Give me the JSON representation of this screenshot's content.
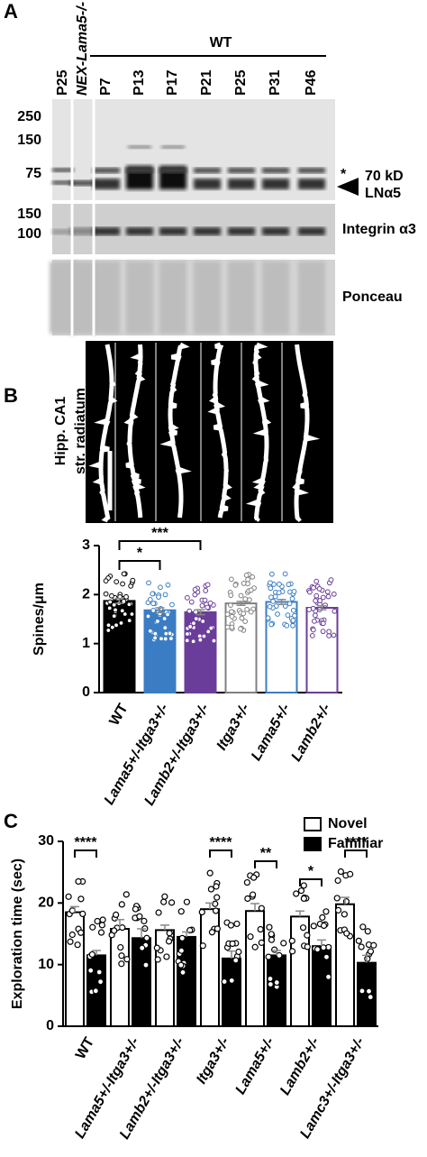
{
  "blot": {
    "panel": "A",
    "lanes": [
      "P25",
      "NEX-Lama5-/-",
      "P7",
      "P13",
      "P17",
      "P21",
      "P25",
      "P31",
      "P46"
    ],
    "group_label": "WT",
    "markers_top": [
      250,
      150,
      75
    ],
    "markers_integrin": [
      150,
      100
    ],
    "asterisk": "*",
    "size_label": "70 kD",
    "band_label": "LNα5",
    "integrin_label": "Integrin α3",
    "ponceau_label": "Ponceau"
  },
  "image_panel": {
    "label_lines": [
      "Hipp. CA1",
      "str. radiatum"
    ]
  },
  "chart_data": [
    {
      "type": "bar",
      "panel": "B",
      "ylabel": "Spines/μm",
      "categories": [
        "WT",
        "Lama5+/-Itga3+/-",
        "Lamb2+/-Itga3+/-",
        "Itga3+/-",
        "Lama5+/-",
        "Lamb2+/-"
      ],
      "values": [
        1.87,
        1.68,
        1.64,
        1.82,
        1.85,
        1.73
      ],
      "errors": [
        0.05,
        0.05,
        0.05,
        0.04,
        0.05,
        0.04
      ],
      "fills": [
        "#000000",
        "#3b7dc4",
        "#6a3d9a",
        "#ffffff",
        "#ffffff",
        "#ffffff"
      ],
      "point_colors": [
        "#000000",
        "#3b7dc4",
        "#6a3d9a",
        "#808080",
        "#3b7dc4",
        "#6a3d9a"
      ],
      "annotations": [
        "*",
        "***"
      ],
      "ylim": [
        0,
        3
      ],
      "yticks": [
        0,
        1,
        2,
        3
      ]
    },
    {
      "type": "grouped_bar",
      "panel": "C",
      "ylabel": "Exploration time (sec)",
      "categories": [
        "WT",
        "Lama5+/-Itga3+/-",
        "Lamb2+/-Itga3+/-",
        "Itga3+/-",
        "Lama5+/-",
        "Lamb2+/-",
        "Lamc3+/-Itga3+/-"
      ],
      "series": [
        {
          "name": "Novel",
          "color": "#ffffff",
          "values": [
            18.5,
            15.8,
            15.6,
            19.0,
            18.7,
            17.8,
            19.8
          ],
          "errors": [
            0.9,
            1.5,
            0.8,
            1.0,
            1.2,
            0.9,
            1.1
          ]
        },
        {
          "name": "Familiar",
          "color": "#000000",
          "values": [
            11.5,
            14.3,
            14.5,
            11.0,
            11.5,
            13.0,
            10.3
          ],
          "errors": [
            0.8,
            1.5,
            0.8,
            1.2,
            0.8,
            1.0,
            1.2
          ]
        }
      ],
      "annotations": [
        "****",
        "****",
        "**",
        "*",
        "****"
      ],
      "legend": "upper right",
      "ylim": [
        0,
        30
      ],
      "yticks": [
        0,
        10,
        20,
        30
      ]
    }
  ]
}
